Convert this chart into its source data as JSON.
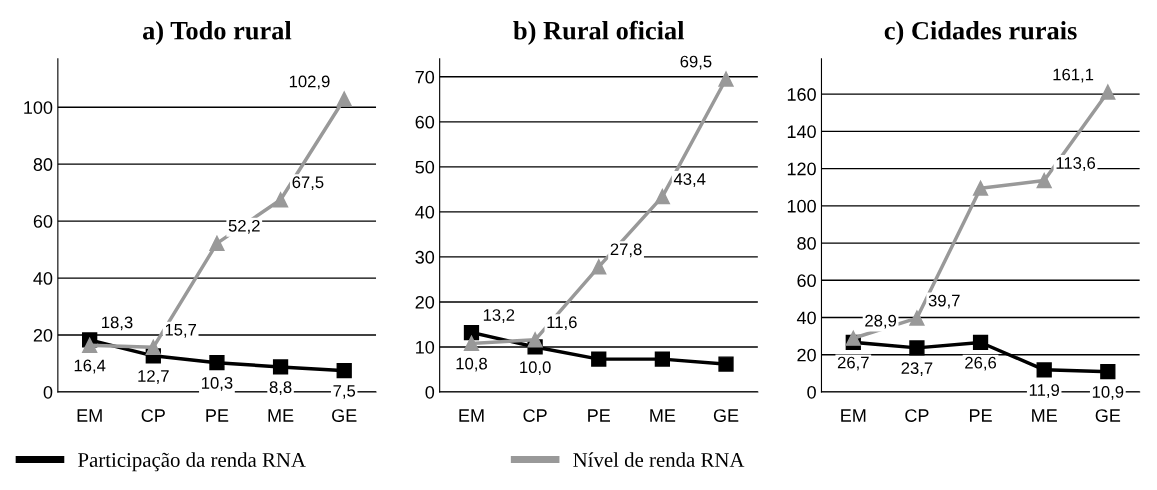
{
  "chart_data": [
    {
      "type": "line",
      "title": "a) Todo rural",
      "categories": [
        "EM",
        "CP",
        "PE",
        "ME",
        "GE"
      ],
      "ylim": [
        0,
        117
      ],
      "yticks": [
        0,
        20,
        40,
        60,
        80,
        100
      ],
      "grid": "y",
      "legend": "bottom",
      "series": [
        {
          "name": "Participação da renda RNA",
          "color": "#000000",
          "marker": "square",
          "values": [
            18.3,
            12.7,
            10.3,
            8.8,
            7.5
          ],
          "value_labels": [
            "18,3",
            "12,7",
            "10,3",
            "8,8",
            "7,5"
          ]
        },
        {
          "name": "Nível de renda RNA",
          "color": "#999999",
          "marker": "triangle",
          "values": [
            16.4,
            15.7,
            52.2,
            67.5,
            102.9
          ],
          "value_labels": [
            "16,4",
            "15,7",
            "52,2",
            "67,5",
            "102,9"
          ]
        }
      ]
    },
    {
      "type": "line",
      "title": "b) Rural oficial",
      "categories": [
        "EM",
        "CP",
        "PE",
        "ME",
        "GE"
      ],
      "ylim": [
        0,
        74
      ],
      "yticks": [
        0,
        10,
        20,
        30,
        40,
        50,
        60,
        70
      ],
      "grid": "y",
      "series": [
        {
          "color": "#000000",
          "marker": "square",
          "values": [
            13.2,
            10.0,
            7.3,
            7.3,
            6.2
          ],
          "value_labels": [
            "13,2",
            "10,0",
            null,
            null,
            null
          ]
        },
        {
          "color": "#999999",
          "marker": "triangle",
          "values": [
            10.8,
            11.6,
            27.8,
            43.4,
            69.5
          ],
          "value_labels": [
            "10,8",
            "11,6",
            "27,8",
            "43,4",
            "69,5"
          ]
        }
      ]
    },
    {
      "type": "line",
      "title": "c) Cidades rurais",
      "categories": [
        "EM",
        "CP",
        "PE",
        "ME",
        "GE"
      ],
      "ylim": [
        0,
        179
      ],
      "yticks": [
        0,
        20,
        40,
        60,
        80,
        100,
        120,
        140,
        160
      ],
      "grid": "y",
      "series": [
        {
          "color": "#000000",
          "marker": "square",
          "values": [
            26.7,
            23.7,
            26.6,
            11.9,
            10.9
          ],
          "value_labels": [
            "26,7",
            "23,7",
            "26,6",
            "11,9",
            "10,9"
          ]
        },
        {
          "color": "#999999",
          "marker": "triangle",
          "values": [
            28.9,
            39.7,
            109.5,
            113.6,
            161.1
          ],
          "value_labels": [
            "28,9",
            "39,7",
            null,
            "113,6",
            "161,1"
          ]
        }
      ]
    }
  ]
}
